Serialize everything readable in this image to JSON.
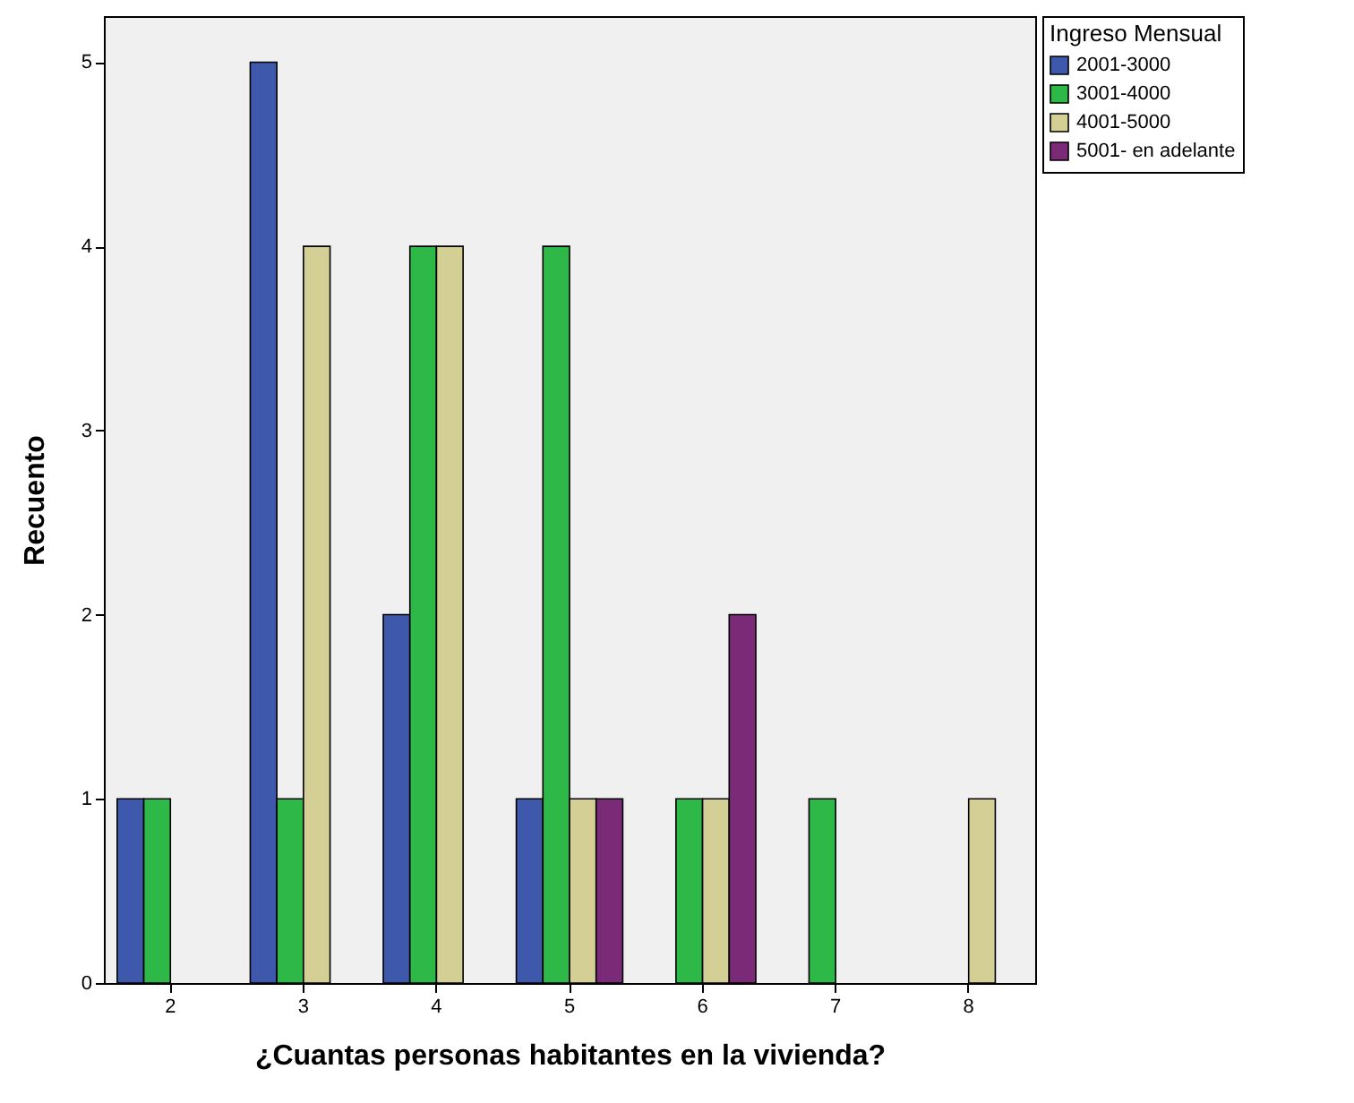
{
  "chart_data": {
    "type": "bar",
    "xlabel": "¿Cuantas personas habitantes en la vivienda?",
    "ylabel": "Recuento",
    "legend_title": "Ingreso Mensual",
    "legend": "right",
    "grid": false,
    "categories": [
      "2",
      "3",
      "4",
      "5",
      "6",
      "7",
      "8"
    ],
    "ylim": [
      0,
      5.25
    ],
    "yticks": [
      0,
      1,
      2,
      3,
      4,
      5
    ],
    "series": [
      {
        "name": "2001-3000",
        "color": "#3e58ac",
        "values": [
          1,
          5,
          2,
          1,
          null,
          null,
          null
        ]
      },
      {
        "name": "3001-4000",
        "color": "#2eb848",
        "values": [
          1,
          1,
          4,
          4,
          1,
          1,
          null
        ]
      },
      {
        "name": "4001-5000",
        "color": "#d4cf94",
        "values": [
          null,
          4,
          4,
          1,
          1,
          null,
          1
        ]
      },
      {
        "name": "5001- en adelante",
        "color": "#7b2a77",
        "values": [
          null,
          null,
          null,
          1,
          2,
          null,
          null
        ]
      }
    ]
  }
}
